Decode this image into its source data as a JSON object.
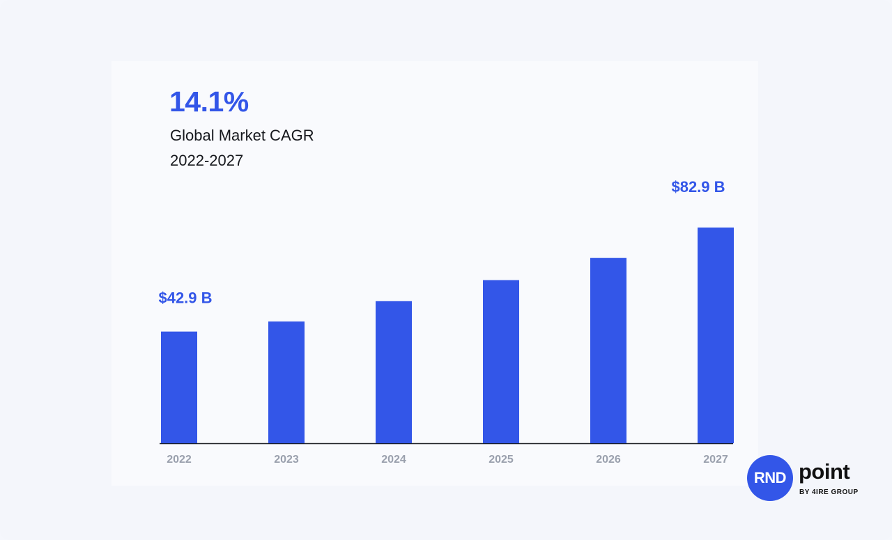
{
  "headline": {
    "cagr": "14.1%",
    "line1": "Global Market CAGR",
    "line2": "2022-2027"
  },
  "logo": {
    "circle_text": "RND",
    "word": "point",
    "sub": "BY 4IRE GROUP"
  },
  "colors": {
    "accent": "#3356e8",
    "text": "#16181d",
    "tick": "#9aa0ad",
    "background": "#f4f6fb",
    "card": "#f9fafd"
  },
  "chart_data": {
    "type": "bar",
    "categories": [
      "2022",
      "2023",
      "2024",
      "2025",
      "2026",
      "2027"
    ],
    "values": [
      42.9,
      46.8,
      54.6,
      62.7,
      71.2,
      82.9
    ],
    "value_labels": [
      "$42.9 B",
      "",
      "",
      "",
      "",
      "$82.9 B"
    ],
    "ylim": [
      0,
      100
    ],
    "grid": false,
    "legend": "none",
    "color": "#3356e8"
  }
}
